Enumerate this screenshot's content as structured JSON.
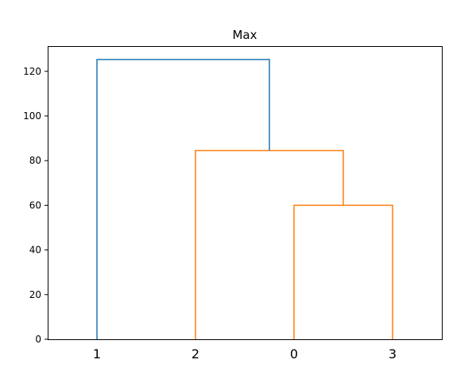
{
  "chart_data": {
    "type": "dendrogram",
    "title": "Max",
    "xlabel": "",
    "ylabel": "",
    "ylim": [
      0,
      131.3
    ],
    "yticks": [
      0,
      20,
      40,
      60,
      80,
      100,
      120
    ],
    "leaf_order": [
      "1",
      "2",
      "0",
      "3"
    ],
    "grid": false,
    "merges": [
      {
        "left": "0",
        "right": "3",
        "height": 60,
        "cluster_color": "orange"
      },
      {
        "left": "2",
        "right": "(0,3)",
        "height": 84.5,
        "cluster_color": "orange"
      },
      {
        "left": "1",
        "right": "(2,(0,3))",
        "height": 125.3,
        "cluster_color": "blue"
      }
    ],
    "links": [
      {
        "color": "#ff7f0e",
        "x": [
          25,
          25,
          35,
          35
        ],
        "y": [
          0,
          60,
          60,
          0
        ]
      },
      {
        "color": "#ff7f0e",
        "x": [
          15,
          15,
          30,
          30
        ],
        "y": [
          0,
          84.5,
          84.5,
          60
        ]
      },
      {
        "color": "#1f77b4",
        "x": [
          5,
          5,
          22.5,
          22.5
        ],
        "y": [
          0,
          125.3,
          125.3,
          84.5
        ]
      }
    ],
    "xlim": [
      0,
      40
    ],
    "leaf_positions": [
      5,
      15,
      25,
      35
    ],
    "colors": {
      "blue": "#1f77b4",
      "orange": "#ff7f0e"
    }
  }
}
